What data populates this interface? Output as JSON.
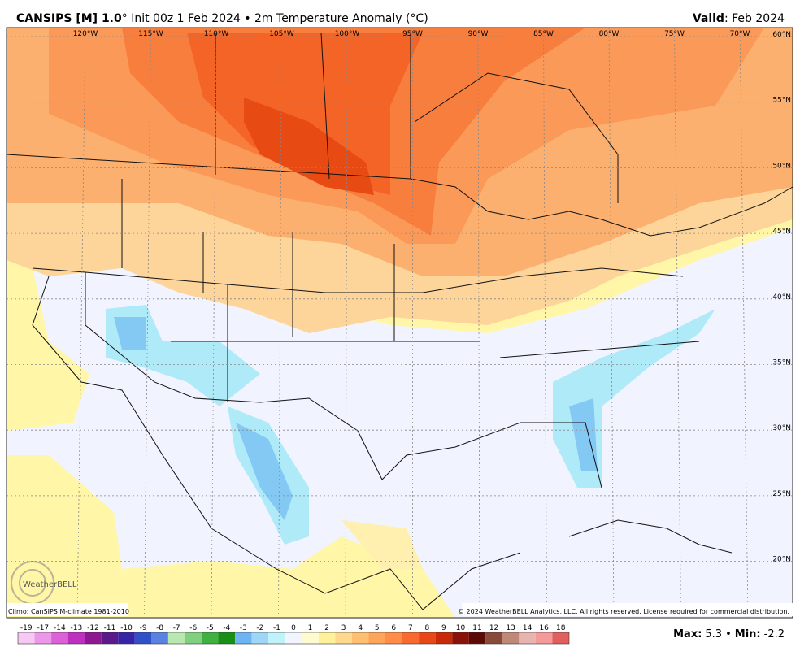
{
  "header": {
    "model": "CANSIPS [M] 1.0",
    "subtitle": "° Init 00z 1 Feb 2024 • 2m Temperature Anomaly (°C)",
    "valid_label": "Valid",
    "valid_text": ": Feb 2024"
  },
  "map": {
    "longitude_labels": [
      "120°W",
      "115°W",
      "110°W",
      "105°W",
      "100°W",
      "95°W",
      "90°W",
      "85°W",
      "80°W",
      "75°W",
      "70°W"
    ],
    "latitude_labels": [
      "60°N",
      "55°N",
      "50°N",
      "45°N",
      "40°N",
      "35°N",
      "30°N",
      "25°N",
      "20°N"
    ],
    "logo": "WeatherBELL"
  },
  "footer": {
    "climo": "Climo: CanSIPS M-climate 1981-2010",
    "copyright": "© 2024 WeatherBELL Analytics, LLC. All rights reserved. License required for commercial distribution."
  },
  "colorbar": {
    "values": [
      -19,
      -17,
      -14,
      -13,
      -12,
      -11,
      -10,
      -9,
      -8,
      -7,
      -6,
      -5,
      -4,
      -3,
      -2,
      -1,
      0,
      1,
      2,
      3,
      4,
      5,
      6,
      7,
      8,
      9,
      10,
      11,
      12,
      13,
      14,
      16,
      18
    ],
    "colors": [
      "#f8c8f4",
      "#ec98e8",
      "#dc60d8",
      "#c030c0",
      "#8e1890",
      "#5a1a8a",
      "#3624a8",
      "#3050c8",
      "#5a82e0",
      "#b8e8b0",
      "#80d080",
      "#40b040",
      "#189018",
      "#6fb4f2",
      "#9fd6f8",
      "#bff2fb",
      "#f2f5ff",
      "#fffbd0",
      "#fff09a",
      "#ffd890",
      "#ffbf70",
      "#ffa55a",
      "#ff8c48",
      "#f86a30",
      "#e84818",
      "#c82a08",
      "#8a1208",
      "#5c0a06",
      "#8a4a3a",
      "#c08878",
      "#e8b4b0",
      "#f49a9a",
      "#e06060"
    ]
  },
  "stats": {
    "max_label": "Max:",
    "max": 5.3,
    "sep": "•",
    "min_label": "Min:",
    "min": -2.2
  }
}
